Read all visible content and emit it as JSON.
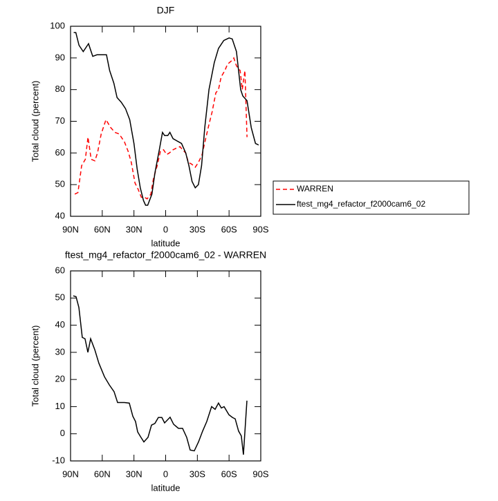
{
  "chart_data": [
    {
      "type": "line",
      "title": "DJF",
      "x_label": "latitude",
      "y_label": "Total cloud (percent)",
      "xlim": [
        90,
        -90
      ],
      "xticks": [
        {
          "value": 90,
          "label": "90N"
        },
        {
          "value": 60,
          "label": "60N"
        },
        {
          "value": 30,
          "label": "30N"
        },
        0,
        {
          "value": -30,
          "label": "30S"
        },
        {
          "value": -60,
          "label": "60S"
        },
        {
          "value": -90,
          "label": "90S"
        }
      ],
      "ylim": [
        40,
        100
      ],
      "yticks": [
        40,
        50,
        60,
        70,
        80,
        90,
        100
      ],
      "legend": "outside-right",
      "series": [
        {
          "name": "WARREN",
          "color": "#ff0000",
          "line_style": "dashed",
          "x": [
            86,
            83,
            79.5,
            76,
            73.5,
            70.5,
            67,
            64.5,
            61,
            56.5,
            52,
            48,
            44,
            39,
            35.5,
            32.5,
            29,
            26,
            23,
            20,
            17.5,
            14,
            11.5,
            8,
            5,
            2,
            -1,
            -3.5,
            -7,
            -10,
            -13.5,
            -16,
            -19,
            -21.5,
            -24.5,
            -28,
            -31,
            -34.5,
            -37.5,
            -41,
            -44,
            -47.5,
            -50,
            -52.5,
            -56,
            -58.5,
            -62,
            -64.5,
            -67,
            -70.5,
            -72.5,
            -75,
            -77
          ],
          "values": [
            47,
            47.5,
            56,
            58,
            65,
            58,
            57.5,
            60,
            66,
            70.5,
            68,
            66.5,
            66,
            63.5,
            60.5,
            57,
            50.5,
            48.5,
            46,
            46,
            45.5,
            47,
            52,
            56,
            60.5,
            61,
            59.5,
            60,
            61,
            61.5,
            62,
            61,
            60,
            57,
            56.5,
            55.5,
            57,
            59.5,
            64,
            69,
            73,
            79,
            80,
            84,
            86,
            88,
            89,
            90,
            87.5,
            86,
            80,
            86,
            65
          ]
        },
        {
          "name": "ftest_mg4_refactor_f2000cam6_02",
          "color": "#000000",
          "line_style": "solid",
          "x": [
            87,
            85,
            82,
            78,
            73,
            69,
            65,
            60,
            56,
            53,
            49,
            46,
            42,
            38,
            34,
            30,
            27,
            24,
            21,
            19,
            17,
            13,
            10,
            6,
            3,
            1,
            -2,
            -4,
            -7,
            -15,
            -19,
            -22,
            -25,
            -28,
            -31,
            -34,
            -37,
            -41,
            -46,
            -50,
            -55,
            -60,
            -63,
            -67,
            -71,
            -73,
            -77,
            -81,
            -85,
            -88
          ],
          "values": [
            98,
            98,
            94,
            92,
            94.5,
            90.5,
            91,
            91,
            91,
            86,
            82,
            77.5,
            76,
            74,
            70.5,
            63,
            55,
            49,
            45,
            43.5,
            43.5,
            47,
            54,
            61,
            66.5,
            65.5,
            65.5,
            66.5,
            64.5,
            63,
            60,
            56,
            51,
            49,
            50,
            56,
            68,
            80,
            88.5,
            93,
            95.5,
            96.3,
            96,
            92,
            80,
            78,
            76.5,
            68,
            63,
            62.5
          ]
        }
      ]
    },
    {
      "type": "line",
      "title": "ftest_mg4_refactor_f2000cam6_02 - WARREN",
      "x_label": "latitude",
      "y_label": "Total cloud (percent)",
      "xlim": [
        90,
        -90
      ],
      "xticks": [
        {
          "value": 90,
          "label": "90N"
        },
        {
          "value": 60,
          "label": "60N"
        },
        {
          "value": 30,
          "label": "30N"
        },
        0,
        {
          "value": -30,
          "label": "30S"
        },
        {
          "value": -60,
          "label": "60S"
        },
        {
          "value": -90,
          "label": "90S"
        }
      ],
      "ylim": [
        -10,
        60
      ],
      "yticks": [
        -10,
        0,
        10,
        20,
        30,
        40,
        50,
        60
      ],
      "series": [
        {
          "color": "#000000",
          "line_style": "solid",
          "x": [
            87.4,
            84.8,
            82.1,
            78.9,
            76.3,
            73.6,
            71,
            67.1,
            63.2,
            57.9,
            53.3,
            48.8,
            45.5,
            39,
            34.4,
            31.1,
            28.5,
            26.5,
            23.9,
            20.6,
            16.7,
            13.4,
            10.2,
            6.9,
            3.6,
            1,
            -4.2,
            -7.5,
            -12.1,
            -16,
            -19.9,
            -23.2,
            -27.1,
            -31.1,
            -35,
            -38.9,
            -43.5,
            -46.8,
            -50,
            -52.7,
            -55.3,
            -59.9,
            -63.2,
            -65.8,
            -69,
            -71.6,
            -73.6,
            -76.9
          ],
          "values": [
            50.8,
            50.5,
            46.5,
            35.5,
            35,
            30,
            35,
            31,
            26,
            21,
            18,
            15.5,
            11.5,
            11.5,
            11.3,
            6.5,
            4.5,
            0.7,
            -1,
            -3,
            -1.3,
            3.2,
            3.8,
            6,
            6,
            4,
            6.1,
            3.5,
            2,
            2,
            -1.3,
            -6,
            -6.3,
            -3,
            1,
            4.5,
            10,
            9,
            11.3,
            9.5,
            10,
            7,
            6,
            5.5,
            1,
            -0.8,
            -7.7,
            12.2
          ]
        }
      ]
    }
  ]
}
